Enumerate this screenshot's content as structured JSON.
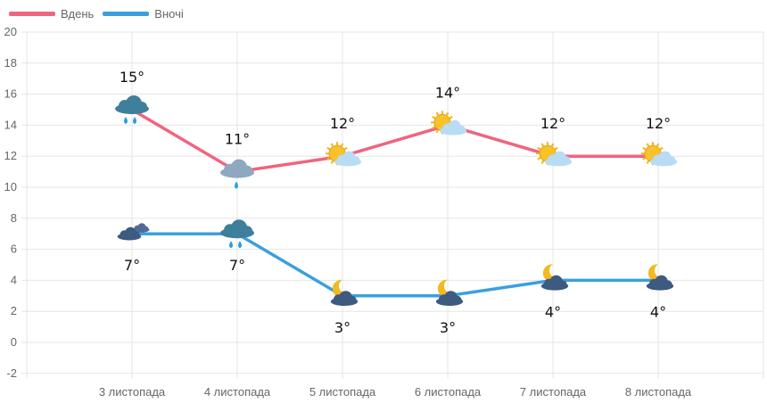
{
  "chart_data": {
    "type": "line",
    "categories": [
      "3 листопада",
      "4 листопада",
      "5 листопада",
      "6 листопада",
      "7 листопада",
      "8 листопада"
    ],
    "series": [
      {
        "name": "Вдень",
        "color": "#f0647f",
        "values": [
          15,
          11,
          12,
          14,
          12,
          12
        ],
        "labels": [
          "15°",
          "11°",
          "12°",
          "14°",
          "12°",
          "12°"
        ],
        "icons": [
          "rain-cloud",
          "rain-cloud-light",
          "sun-cloud",
          "sun-cloud",
          "sun-cloud",
          "sun-cloud"
        ]
      },
      {
        "name": "Вночі",
        "color": "#3aa0de",
        "values": [
          7,
          7,
          3,
          3,
          4,
          4
        ],
        "labels": [
          "7°",
          "7°",
          "3°",
          "3°",
          "4°",
          "4°"
        ],
        "icons": [
          "dark-clouds",
          "rain-cloud",
          "moon-cloud",
          "moon-cloud",
          "moon-cloud",
          "moon-cloud"
        ]
      }
    ],
    "yticks": [
      "-2",
      "0",
      "2",
      "4",
      "6",
      "8",
      "10",
      "12",
      "14",
      "16",
      "18",
      "20"
    ],
    "ylim": [
      -2,
      20
    ],
    "grid": true,
    "legend": "top-left"
  }
}
